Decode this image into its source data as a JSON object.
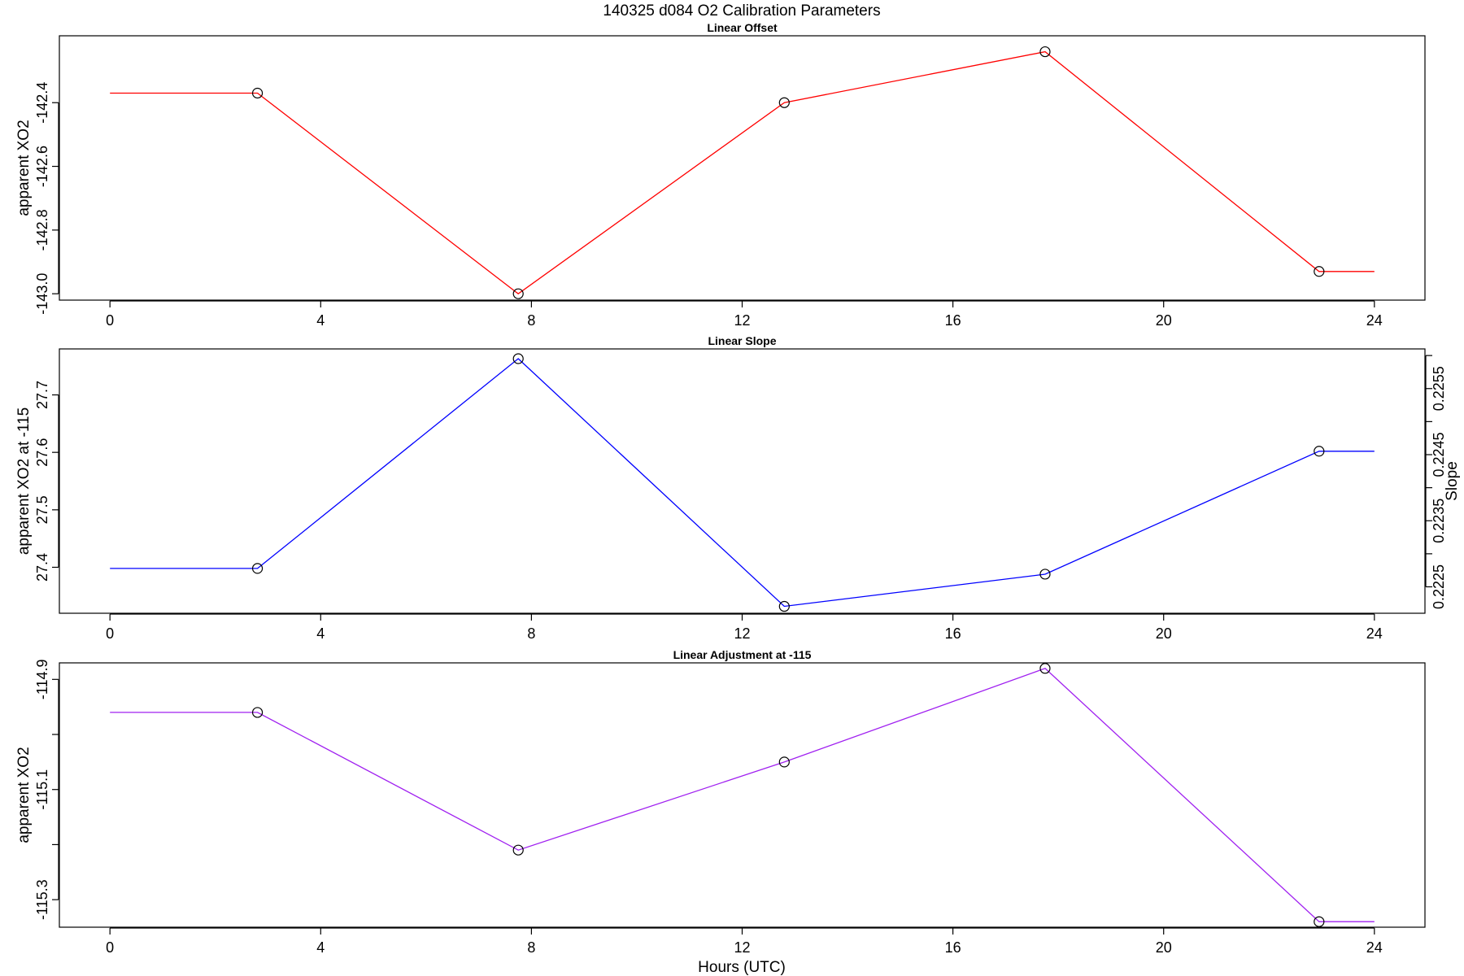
{
  "figure": {
    "title": "140325   d084   O2 Calibration Parameters",
    "xlabel": "Hours (UTC)"
  },
  "chart_data": [
    {
      "type": "line",
      "title": "Linear Offset",
      "ylabel": "apparent XO2",
      "color": "#ff0000",
      "x": [
        0,
        2.8,
        7.75,
        12.8,
        17.75,
        22.95,
        24
      ],
      "y": [
        -142.37,
        -142.37,
        -143.0,
        -142.4,
        -142.24,
        -142.93,
        -142.93
      ],
      "markers": [
        false,
        true,
        true,
        true,
        true,
        true,
        false
      ],
      "xlim": [
        -0.96,
        24.96
      ],
      "ylim": [
        -143.02,
        -142.19
      ],
      "xticks": [
        0,
        4,
        8,
        12,
        16,
        20,
        24
      ],
      "yticks": [
        -143.0,
        -142.8,
        -142.6,
        -142.4
      ],
      "ytick_labels": [
        "-143.0",
        "-142.8",
        "-142.6",
        "-142.4"
      ],
      "grid": false
    },
    {
      "type": "line",
      "title": "Linear Slope",
      "ylabel": "apparent XO2 at -115",
      "y2label": "Slope",
      "color": "#0000ff",
      "x": [
        0,
        2.8,
        7.75,
        12.8,
        17.75,
        22.95,
        24
      ],
      "y": [
        27.398,
        27.398,
        27.763,
        27.332,
        27.388,
        27.602,
        27.602
      ],
      "markers": [
        false,
        true,
        true,
        true,
        true,
        true,
        false
      ],
      "xlim": [
        -0.96,
        24.96
      ],
      "ylim": [
        27.32,
        27.78
      ],
      "xticks": [
        0,
        4,
        8,
        12,
        16,
        20,
        24
      ],
      "yticks": [
        27.4,
        27.5,
        27.6,
        27.7
      ],
      "ytick_labels": [
        "27.4",
        "27.5",
        "27.6",
        "27.7"
      ],
      "y2lim": [
        0.2221,
        0.2261
      ],
      "y2ticks": [
        0.2225,
        0.223,
        0.2235,
        0.224,
        0.2245,
        0.225,
        0.2255,
        0.226
      ],
      "y2tick_labels": [
        "0.2225",
        "",
        "0.2235",
        "",
        "0.2245",
        "",
        "0.2255",
        ""
      ],
      "grid": false
    },
    {
      "type": "line",
      "title": "Linear Adjustment at -115",
      "ylabel": "apparent XO2",
      "color": "#a020f0",
      "x": [
        0,
        2.8,
        7.75,
        12.8,
        17.75,
        22.95,
        24
      ],
      "y": [
        -114.96,
        -114.96,
        -115.21,
        -115.05,
        -114.88,
        -115.34,
        -115.34
      ],
      "markers": [
        false,
        true,
        true,
        true,
        true,
        true,
        false
      ],
      "xlim": [
        -0.96,
        24.96
      ],
      "ylim": [
        -115.35,
        -114.87
      ],
      "xticks": [
        0,
        4,
        8,
        12,
        16,
        20,
        24
      ],
      "yticks": [
        -115.3,
        -115.2,
        -115.1,
        -115.0,
        -114.9
      ],
      "ytick_labels": [
        "-115.3",
        "",
        "-115.1",
        "",
        "-114.9"
      ],
      "grid": false
    }
  ]
}
